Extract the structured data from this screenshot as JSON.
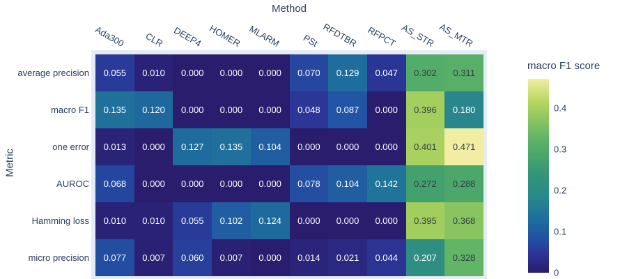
{
  "chart_data": {
    "type": "heatmap",
    "x_axis_title": "Method",
    "y_axis_title": "Metric",
    "columns": [
      "Ada300",
      "CLR",
      "DEEP4",
      "HOMER",
      "MLARM",
      "PSt",
      "RFDTBR",
      "RFPCT",
      "AS_STR",
      "AS_MTR"
    ],
    "rows": [
      "average precision",
      "macro F1",
      "one error",
      "AUROC",
      "Hamming loss",
      "micro precision"
    ],
    "values": [
      [
        0.055,
        0.01,
        0.0,
        0.0,
        0.0,
        0.07,
        0.129,
        0.047,
        0.302,
        0.311
      ],
      [
        0.135,
        0.12,
        0.0,
        0.0,
        0.0,
        0.048,
        0.087,
        0.0,
        0.396,
        0.18
      ],
      [
        0.013,
        0.0,
        0.127,
        0.135,
        0.104,
        0.0,
        0.0,
        0.0,
        0.401,
        0.471
      ],
      [
        0.068,
        0.0,
        0.0,
        0.0,
        0.0,
        0.078,
        0.104,
        0.142,
        0.272,
        0.288
      ],
      [
        0.01,
        0.01,
        0.055,
        0.102,
        0.124,
        0.0,
        0.0,
        0.0,
        0.395,
        0.368
      ],
      [
        0.077,
        0.007,
        0.06,
        0.007,
        0.0,
        0.014,
        0.021,
        0.044,
        0.207,
        0.328
      ]
    ],
    "value_decimals": 3,
    "colorbar": {
      "title": "macro F1 score",
      "min": 0,
      "max": 0.471,
      "tick_values": [
        0,
        0.1,
        0.2,
        0.3,
        0.4
      ],
      "tick_labels": [
        "0",
        "0.1",
        "0.2",
        "0.3",
        "0.4"
      ],
      "position": "right"
    },
    "colorscale": [
      [
        0.0,
        "#2a1d6e"
      ],
      [
        0.1,
        "#2b3596"
      ],
      [
        0.18,
        "#2153a4"
      ],
      [
        0.28,
        "#1e6f9c"
      ],
      [
        0.4,
        "#2a8a89"
      ],
      [
        0.5,
        "#349478"
      ],
      [
        0.6,
        "#48a56b"
      ],
      [
        0.7,
        "#63b566"
      ],
      [
        0.8,
        "#90c75e"
      ],
      [
        0.88,
        "#b5d65f"
      ],
      [
        1.0,
        "#f1eea3"
      ]
    ],
    "cell_text_light": "#ffffff",
    "cell_text_dark": "#333d47",
    "dark_text_threshold": 0.25,
    "plot_background": "#e5ecf6",
    "label_color": "#2a3f5f",
    "grid": "off"
  }
}
